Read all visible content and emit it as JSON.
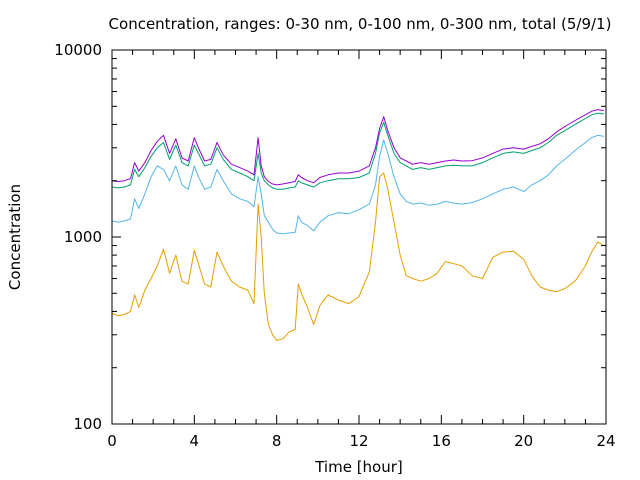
{
  "chart_data": {
    "type": "line",
    "title": "Concentration, ranges: 0-30 nm, 0-100 nm, 0-300 nm, total (5/9/1)",
    "xlabel": "Time [hour]",
    "ylabel": "Concentration",
    "xlim": [
      0,
      24
    ],
    "ylim": [
      100,
      10000
    ],
    "y_scale": "log",
    "x_ticks": [
      0,
      4,
      8,
      12,
      16,
      20,
      24
    ],
    "x_tick_labels": [
      "0",
      "4",
      "8",
      "12",
      "16",
      "20",
      "24"
    ],
    "y_ticks": [
      100,
      1000,
      10000
    ],
    "y_tick_labels": [
      "100",
      "1000",
      "10000"
    ],
    "grid": false,
    "legend": "none",
    "series": [
      {
        "color": "#e69f00",
        "x": [
          0,
          0.3,
          0.6,
          0.9,
          1.1,
          1.3,
          1.6,
          1.9,
          2.2,
          2.5,
          2.8,
          3.1,
          3.4,
          3.7,
          4.0,
          4.2,
          4.5,
          4.8,
          5.1,
          5.4,
          5.8,
          6.2,
          6.6,
          6.9,
          7.1,
          7.25,
          7.4,
          7.6,
          7.8,
          8.0,
          8.3,
          8.6,
          8.9,
          9.05,
          9.2,
          9.5,
          9.8,
          10.1,
          10.5,
          11.0,
          11.5,
          12.0,
          12.5,
          12.8,
          13.0,
          13.2,
          13.4,
          13.7,
          14.0,
          14.3,
          14.6,
          15.0,
          15.4,
          15.8,
          16.2,
          16.6,
          17.0,
          17.5,
          18.0,
          18.5,
          19.0,
          19.5,
          20.0,
          20.4,
          20.8,
          21.2,
          21.6,
          22.0,
          22.5,
          23.0,
          23.3,
          23.6,
          23.9
        ],
        "y": [
          390,
          380,
          385,
          400,
          490,
          420,
          520,
          600,
          700,
          860,
          640,
          800,
          580,
          560,
          850,
          720,
          560,
          540,
          830,
          700,
          580,
          540,
          520,
          440,
          1500,
          1000,
          500,
          340,
          300,
          280,
          285,
          310,
          320,
          560,
          500,
          420,
          340,
          430,
          490,
          460,
          440,
          480,
          650,
          1200,
          2100,
          2200,
          1800,
          1200,
          800,
          620,
          600,
          580,
          600,
          640,
          740,
          720,
          700,
          620,
          600,
          780,
          830,
          840,
          760,
          620,
          540,
          520,
          510,
          530,
          580,
          700,
          830,
          940,
          900
        ]
      },
      {
        "color": "#56b4e9",
        "x": [
          0,
          0.3,
          0.6,
          0.9,
          1.1,
          1.3,
          1.6,
          1.9,
          2.2,
          2.5,
          2.8,
          3.1,
          3.4,
          3.7,
          4.0,
          4.2,
          4.5,
          4.8,
          5.1,
          5.4,
          5.8,
          6.2,
          6.6,
          6.9,
          7.1,
          7.25,
          7.4,
          7.6,
          7.8,
          8.0,
          8.3,
          8.6,
          8.9,
          9.05,
          9.2,
          9.5,
          9.8,
          10.1,
          10.5,
          11.0,
          11.5,
          12.0,
          12.5,
          12.8,
          13.0,
          13.2,
          13.4,
          13.7,
          14.0,
          14.3,
          14.6,
          15.0,
          15.4,
          15.8,
          16.2,
          16.6,
          17.0,
          17.5,
          18.0,
          18.5,
          19.0,
          19.5,
          20.0,
          20.4,
          20.8,
          21.2,
          21.6,
          22.0,
          22.5,
          23.0,
          23.3,
          23.6,
          23.9
        ],
        "y": [
          1220,
          1200,
          1220,
          1250,
          1600,
          1420,
          1700,
          2100,
          2400,
          2300,
          2000,
          2400,
          1900,
          1800,
          2400,
          2100,
          1800,
          1850,
          2300,
          2000,
          1700,
          1600,
          1550,
          1450,
          2100,
          1700,
          1300,
          1200,
          1100,
          1050,
          1040,
          1050,
          1060,
          1300,
          1200,
          1150,
          1080,
          1200,
          1300,
          1350,
          1330,
          1400,
          1500,
          1900,
          2700,
          3300,
          2800,
          2100,
          1700,
          1550,
          1500,
          1520,
          1480,
          1500,
          1550,
          1520,
          1500,
          1530,
          1600,
          1700,
          1800,
          1850,
          1750,
          1900,
          2000,
          2150,
          2400,
          2600,
          2900,
          3200,
          3400,
          3500,
          3450
        ]
      },
      {
        "color": "#009e73",
        "x": [
          0,
          0.3,
          0.6,
          0.9,
          1.1,
          1.3,
          1.6,
          1.9,
          2.2,
          2.5,
          2.8,
          3.1,
          3.4,
          3.7,
          4.0,
          4.2,
          4.5,
          4.8,
          5.1,
          5.4,
          5.8,
          6.2,
          6.6,
          6.9,
          7.1,
          7.25,
          7.4,
          7.6,
          7.8,
          8.0,
          8.3,
          8.6,
          8.9,
          9.05,
          9.2,
          9.5,
          9.8,
          10.1,
          10.5,
          11.0,
          11.5,
          12.0,
          12.5,
          12.8,
          13.0,
          13.2,
          13.4,
          13.7,
          14.0,
          14.3,
          14.6,
          15.0,
          15.4,
          15.8,
          16.2,
          16.6,
          17.0,
          17.5,
          18.0,
          18.5,
          19.0,
          19.5,
          20.0,
          20.4,
          20.8,
          21.2,
          21.6,
          22.0,
          22.5,
          23.0,
          23.3,
          23.6,
          23.9
        ],
        "y": [
          1850,
          1830,
          1850,
          1900,
          2300,
          2100,
          2350,
          2700,
          3000,
          3200,
          2600,
          3100,
          2500,
          2400,
          3100,
          2800,
          2400,
          2450,
          3000,
          2600,
          2300,
          2200,
          2100,
          2000,
          2800,
          2200,
          2000,
          1900,
          1830,
          1800,
          1800,
          1830,
          1850,
          2000,
          1950,
          1900,
          1850,
          1950,
          2000,
          2050,
          2050,
          2080,
          2200,
          2800,
          3600,
          4100,
          3500,
          2800,
          2500,
          2400,
          2300,
          2350,
          2300,
          2350,
          2400,
          2420,
          2400,
          2400,
          2500,
          2650,
          2800,
          2850,
          2800,
          2900,
          3000,
          3200,
          3500,
          3700,
          4000,
          4300,
          4500,
          4600,
          4550
        ]
      },
      {
        "color": "#9400d3",
        "x": [
          0,
          0.3,
          0.6,
          0.9,
          1.1,
          1.3,
          1.6,
          1.9,
          2.2,
          2.5,
          2.8,
          3.1,
          3.4,
          3.7,
          4.0,
          4.2,
          4.5,
          4.8,
          5.1,
          5.4,
          5.8,
          6.2,
          6.6,
          6.9,
          7.1,
          7.25,
          7.4,
          7.6,
          7.8,
          8.0,
          8.3,
          8.6,
          8.9,
          9.05,
          9.2,
          9.5,
          9.8,
          10.1,
          10.5,
          11.0,
          11.5,
          12.0,
          12.5,
          12.8,
          13.0,
          13.2,
          13.4,
          13.7,
          14.0,
          14.3,
          14.6,
          15.0,
          15.4,
          15.8,
          16.2,
          16.6,
          17.0,
          17.5,
          18.0,
          18.5,
          19.0,
          19.5,
          20.0,
          20.4,
          20.8,
          21.2,
          21.6,
          22.0,
          22.5,
          23.0,
          23.3,
          23.6,
          23.9
        ],
        "y": [
          2000,
          1980,
          2000,
          2050,
          2500,
          2250,
          2500,
          2900,
          3250,
          3500,
          2800,
          3350,
          2650,
          2550,
          3400,
          3000,
          2550,
          2600,
          3200,
          2750,
          2450,
          2350,
          2250,
          2150,
          3400,
          2400,
          2100,
          1980,
          1920,
          1900,
          1920,
          1950,
          1980,
          2150,
          2080,
          2000,
          1950,
          2080,
          2150,
          2200,
          2200,
          2250,
          2400,
          3000,
          3800,
          4400,
          3700,
          3000,
          2650,
          2550,
          2450,
          2500,
          2450,
          2500,
          2550,
          2580,
          2550,
          2560,
          2650,
          2800,
          2950,
          3000,
          2950,
          3050,
          3150,
          3350,
          3650,
          3900,
          4200,
          4500,
          4700,
          4800,
          4750
        ]
      }
    ]
  }
}
